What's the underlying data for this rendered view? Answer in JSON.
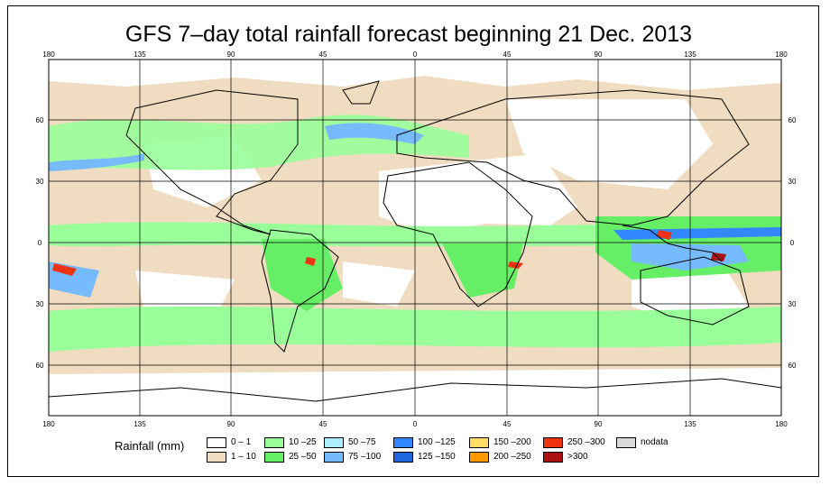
{
  "title": "GFS 7–day total rainfall forecast beginning 21 Dec. 2013",
  "map": {
    "top_lon_labels": [
      "180",
      "135",
      "90",
      "45",
      "0",
      "45",
      "90",
      "135",
      "180"
    ],
    "bottom_lon_labels": [
      "180",
      "135",
      "90",
      "45",
      "0",
      "45",
      "90",
      "135",
      "180"
    ],
    "left_lat_labels": [
      "60",
      "30",
      "0",
      "30",
      "60"
    ],
    "right_lat_labels": [
      "60",
      "30",
      "0",
      "30",
      "60"
    ],
    "colors": {
      "land_border": "#000000",
      "grid": "#000000",
      "dry": "#ffffff",
      "light": "#f0dcc0",
      "green_light": "#99ff99",
      "green": "#66ee66",
      "blue_light": "#aaddff",
      "blue": "#66aaff",
      "blue_dark": "#3377ee",
      "red": "#ee3322",
      "dark_red": "#aa1111"
    }
  },
  "legend": {
    "title": "Rainfall (mm)",
    "items": [
      {
        "label": "0 – 1",
        "color": "#ffffff"
      },
      {
        "label": "1 – 10",
        "color": "#f0dcc0"
      },
      {
        "label": "10 –25",
        "color": "#99ff99"
      },
      {
        "label": "25 –50",
        "color": "#66ee66"
      },
      {
        "label": "50 –75",
        "color": "#aaeeff"
      },
      {
        "label": "75 –100",
        "color": "#77bbff"
      },
      {
        "label": "100 –125",
        "color": "#3388ff"
      },
      {
        "label": "125 –150",
        "color": "#2266dd"
      },
      {
        "label": "150 –200",
        "color": "#ffdd66"
      },
      {
        "label": "200 –250",
        "color": "#ff9900"
      },
      {
        "label": "250 –300",
        "color": "#ee3311"
      },
      {
        "label": ">300",
        "color": "#aa1111"
      },
      {
        "label": "nodata",
        "color": "#d9d9d9"
      }
    ]
  }
}
